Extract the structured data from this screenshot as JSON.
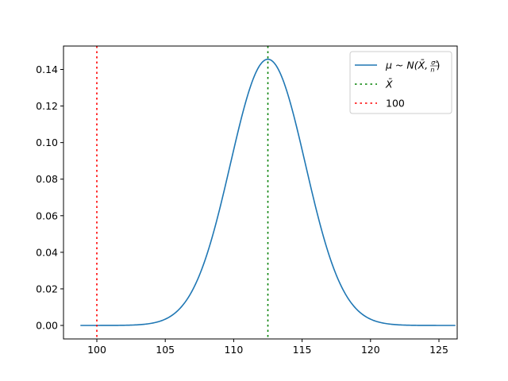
{
  "chart_data": {
    "type": "line",
    "title": "",
    "xlabel": "",
    "ylabel": "",
    "xlim": [
      97.5,
      127.5
    ],
    "ylim": [
      -0.0073,
      0.1528
    ],
    "grid": false,
    "legend_position": "upper right",
    "x_ticks": [
      100,
      105,
      110,
      115,
      120,
      125
    ],
    "x_tick_labels": [
      "100",
      "105",
      "110",
      "115",
      "120",
      "125"
    ],
    "y_ticks": [
      0.0,
      0.02,
      0.04,
      0.06,
      0.08,
      0.1,
      0.12,
      0.14
    ],
    "y_tick_labels": [
      "0.00",
      "0.02",
      "0.04",
      "0.06",
      "0.08",
      "0.10",
      "0.12",
      "0.14"
    ],
    "series": [
      {
        "name": "μ ~ N(X̄, σ²/n)",
        "kind": "normal_pdf",
        "mean": 112.5,
        "std": 2.74,
        "x_range": [
          98.8,
          126.2
        ],
        "x": [
          98.8,
          100,
          102,
          104,
          106,
          107,
          108,
          109,
          110,
          111,
          112,
          112.5,
          113,
          114,
          115,
          116,
          117,
          118,
          119,
          120,
          122,
          124,
          126.2
        ],
        "values": [
          0.0,
          0.0,
          0.0001,
          0.0012,
          0.0088,
          0.0195,
          0.0371,
          0.0602,
          0.086,
          0.1082,
          0.1388,
          0.1456,
          0.138,
          0.1176,
          0.096,
          0.0647,
          0.0373,
          0.0195,
          0.0088,
          0.0034,
          0.0003,
          0.0,
          0.0
        ],
        "color": "#1f77b4",
        "linestyle": "solid"
      }
    ],
    "vlines": [
      {
        "name": "X̄",
        "x": 112.5,
        "color": "#008000",
        "linestyle": "dotted"
      },
      {
        "name": "100",
        "x": 100,
        "color": "#ff0000",
        "linestyle": "dotted"
      }
    ],
    "legend": [
      {
        "label_main": "μ ~ N(X̄, ",
        "frac_num": "σ²",
        "frac_den": "n",
        "label_end": ")",
        "color": "#1f77b4",
        "style": "solid"
      },
      {
        "label_main": "X̄",
        "color": "#008000",
        "style": "dotted"
      },
      {
        "label_main": "100",
        "color": "#ff0000",
        "style": "dotted"
      }
    ]
  }
}
